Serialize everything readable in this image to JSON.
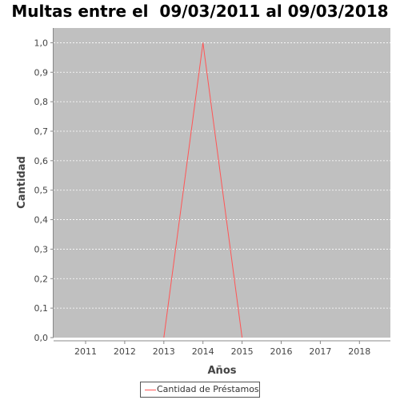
{
  "chart_data": {
    "type": "line",
    "title": "Multas entre el  09/03/2011 al 09/03/2018",
    "xlabel": "Años",
    "ylabel": "Cantidad",
    "categories": [
      "2011",
      "2012",
      "2013",
      "2014",
      "2015",
      "2016",
      "2017",
      "2018"
    ],
    "y_ticks": [
      "0,0",
      "0,1",
      "0,2",
      "0,3",
      "0,4",
      "0,5",
      "0,6",
      "0,7",
      "0,8",
      "0,9",
      "1,0"
    ],
    "ylim": [
      0,
      1.05
    ],
    "series": [
      {
        "name": "Cantidad de Préstamos",
        "x": [
          2013,
          2014,
          2015
        ],
        "values": [
          0,
          1,
          0
        ],
        "color": "#ff5555"
      }
    ],
    "grid": true,
    "legend": "bottom-center",
    "plot_background": "#c0c0c0",
    "gridline_color": "#ffffff"
  }
}
